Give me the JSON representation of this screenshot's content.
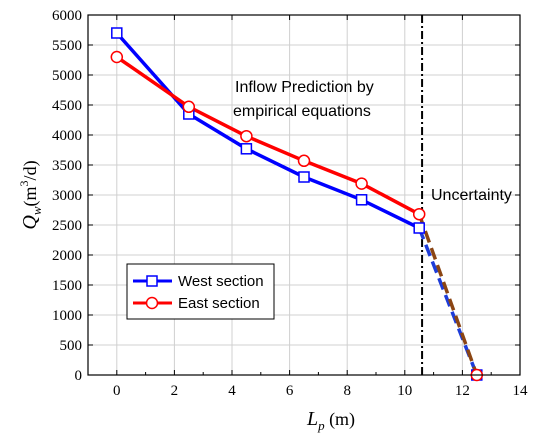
{
  "chart_data": {
    "type": "line",
    "xlabel_main": "L",
    "xlabel_sub": "p",
    "xlabel_unit": " (m)",
    "ylabel_main": "Q",
    "ylabel_sub": "w",
    "ylabel_unit_pre": "(m",
    "ylabel_unit_sup": "3",
    "ylabel_unit_post": "/d)",
    "xlim": [
      -1,
      14
    ],
    "ylim": [
      0,
      6000
    ],
    "xticks": [
      0,
      2,
      4,
      6,
      8,
      10,
      12,
      14
    ],
    "yticks": [
      0,
      500,
      1000,
      1500,
      2000,
      2500,
      3000,
      3500,
      4000,
      4500,
      5000,
      5500,
      6000
    ],
    "grid": true,
    "annotations": {
      "prediction_line1": "Inflow Prediction by",
      "prediction_line2": "empirical equations",
      "uncertainty": "Uncertainty"
    },
    "uncertainty_x": 10.6,
    "legend_position": "bottom-left",
    "series": [
      {
        "name": "West section",
        "color": "#0000ff",
        "marker": "square",
        "x": [
          0,
          2.5,
          4.5,
          6.5,
          8.5,
          10.5
        ],
        "y": [
          5700,
          4350,
          3770,
          3300,
          2920,
          2450
        ],
        "dashed_x": [
          10.5,
          12.5
        ],
        "dashed_y": [
          2450,
          0
        ],
        "dashed_color": "#1e3cd8"
      },
      {
        "name": "East section",
        "color": "#ff0000",
        "marker": "circle",
        "x": [
          0,
          2.5,
          4.5,
          6.5,
          8.5,
          10.5
        ],
        "y": [
          5300,
          4470,
          3980,
          3570,
          3190,
          2680
        ],
        "dashed_x": [
          10.5,
          12.5
        ],
        "dashed_y": [
          2680,
          0
        ],
        "dashed_color": "#8b4513"
      }
    ]
  }
}
